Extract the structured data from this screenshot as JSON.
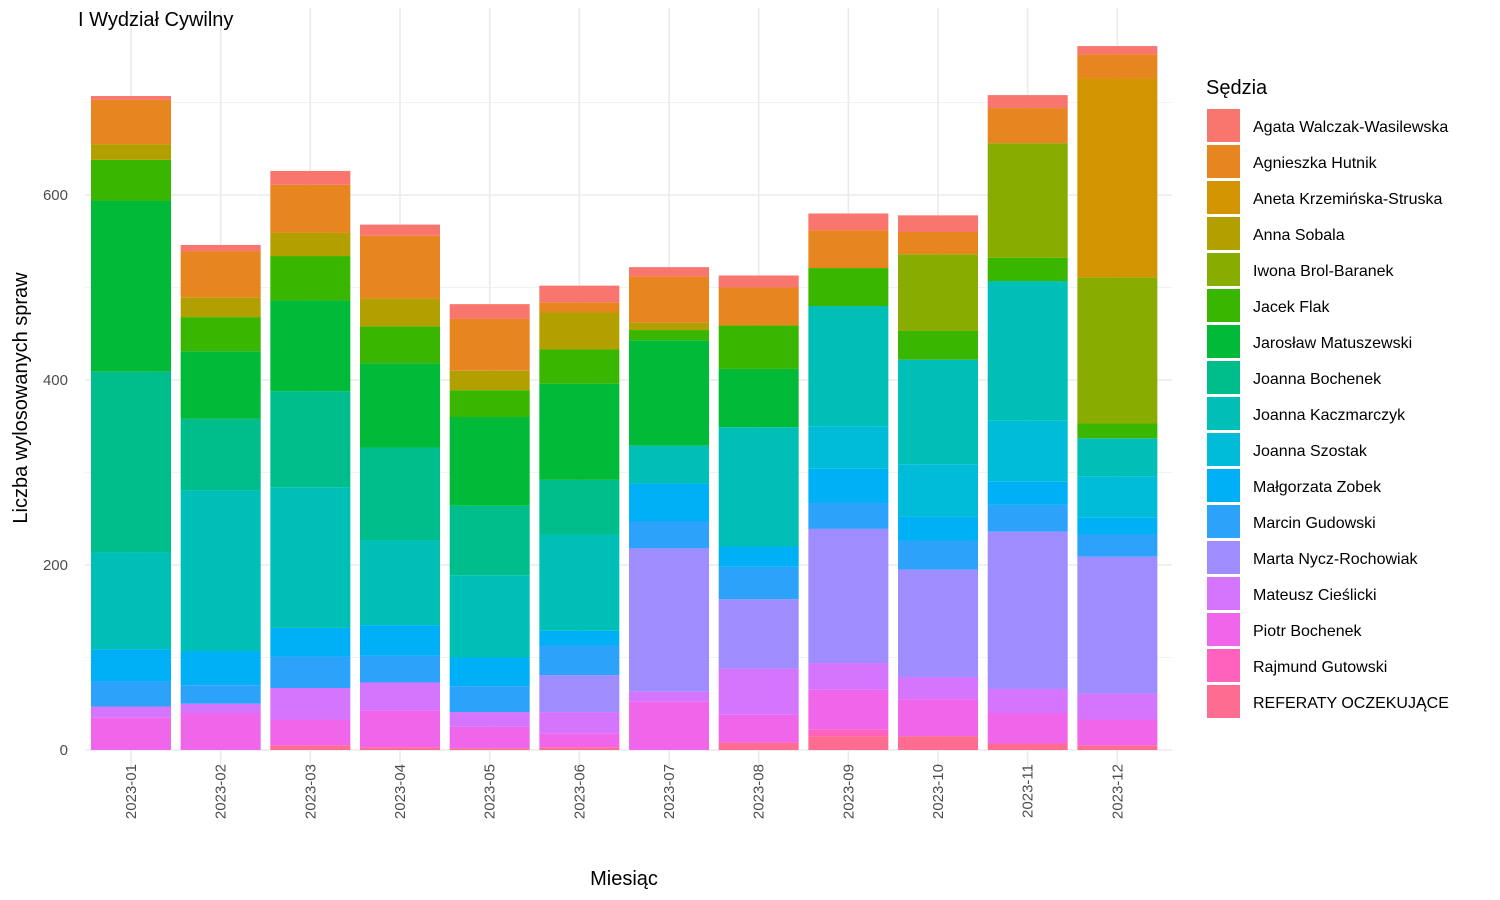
{
  "chart_data": {
    "type": "bar",
    "stacked": true,
    "title": "I Wydział Cywilny",
    "xlabel": "Miesiąc",
    "ylabel": "Liczba wylosowanych spraw",
    "ylim": [
      0,
      780
    ],
    "yticks": [
      0,
      200,
      400,
      600
    ],
    "grid": true,
    "legend_title": "Sędzia",
    "legend_position": "right",
    "categories": [
      "2023-01",
      "2023-02",
      "2023-03",
      "2023-04",
      "2023-05",
      "2023-06",
      "2023-07",
      "2023-08",
      "2023-09",
      "2023-10",
      "2023-11",
      "2023-12"
    ],
    "series": [
      {
        "name": "REFERATY OCZEKUJĄCE",
        "color": "#FF6C91",
        "values": [
          0,
          0,
          5,
          3,
          2,
          3,
          0,
          8,
          15,
          15,
          7,
          5
        ]
      },
      {
        "name": "Rajmund Gutowski",
        "color": "#FF62BC",
        "values": [
          0,
          0,
          0,
          0,
          0,
          0,
          0,
          0,
          7,
          0,
          0,
          0
        ]
      },
      {
        "name": "Piotr Bochenek",
        "color": "#F066EA",
        "values": [
          35,
          40,
          28,
          40,
          23,
          15,
          52,
          30,
          43,
          40,
          33,
          28
        ]
      },
      {
        "name": "Mateusz Cieślicki",
        "color": "#D575FE",
        "values": [
          12,
          10,
          34,
          30,
          16,
          23,
          11,
          50,
          29,
          24,
          26,
          28
        ]
      },
      {
        "name": "Marta Nycz-Rochowiak",
        "color": "#9F8CFF",
        "values": [
          0,
          0,
          0,
          0,
          0,
          40,
          155,
          75,
          145,
          116,
          170,
          148
        ]
      },
      {
        "name": "Marcin Gudowski",
        "color": "#2DA2FA",
        "values": [
          27,
          20,
          34,
          29,
          28,
          32,
          29,
          35,
          28,
          31,
          29,
          24
        ]
      },
      {
        "name": "Małgorzata Zobek",
        "color": "#00B0F6",
        "values": [
          35,
          37,
          31,
          33,
          31,
          16,
          41,
          22,
          37,
          26,
          25,
          18
        ]
      },
      {
        "name": "Joanna Szostak",
        "color": "#00BCD8",
        "values": [
          0,
          0,
          0,
          0,
          0,
          0,
          0,
          0,
          46,
          57,
          66,
          45
        ]
      },
      {
        "name": "Joanna Kaczmarczyk",
        "color": "#00BFB6",
        "values": [
          105,
          174,
          152,
          92,
          89,
          104,
          41,
          129,
          130,
          113,
          151,
          41
        ]
      },
      {
        "name": "Joanna Bochenek",
        "color": "#00BD8C",
        "values": [
          195,
          77,
          104,
          100,
          75,
          59,
          0,
          0,
          0,
          0,
          0,
          0
        ]
      },
      {
        "name": "Jarosław Matuszewski",
        "color": "#00BA38",
        "values": [
          185,
          73,
          98,
          91,
          96,
          104,
          114,
          63,
          0,
          0,
          0,
          0
        ]
      },
      {
        "name": "Jacek Flak",
        "color": "#39B600",
        "values": [
          44,
          37,
          48,
          40,
          29,
          37,
          11,
          47,
          41,
          31,
          25,
          16
        ]
      },
      {
        "name": "Iwona Brol-Baranek",
        "color": "#88AC00",
        "values": [
          0,
          0,
          0,
          0,
          0,
          0,
          0,
          0,
          0,
          83,
          124,
          158
        ]
      },
      {
        "name": "Anna Sobala",
        "color": "#B1A000",
        "values": [
          17,
          21,
          25,
          30,
          21,
          40,
          8,
          0,
          0,
          0,
          0,
          0
        ]
      },
      {
        "name": "Aneta Krzemińska-Struska",
        "color": "#D29400",
        "values": [
          0,
          0,
          0,
          0,
          0,
          0,
          0,
          0,
          0,
          0,
          0,
          215
        ]
      },
      {
        "name": "Agnieszka Hutnik",
        "color": "#E7851E",
        "values": [
          48,
          50,
          52,
          68,
          56,
          11,
          50,
          41,
          41,
          24,
          38,
          26
        ]
      },
      {
        "name": "Agata Walczak-Wasilewska",
        "color": "#F8766D",
        "values": [
          4,
          7,
          15,
          12,
          16,
          18,
          10,
          13,
          18,
          18,
          14,
          9
        ]
      }
    ]
  }
}
